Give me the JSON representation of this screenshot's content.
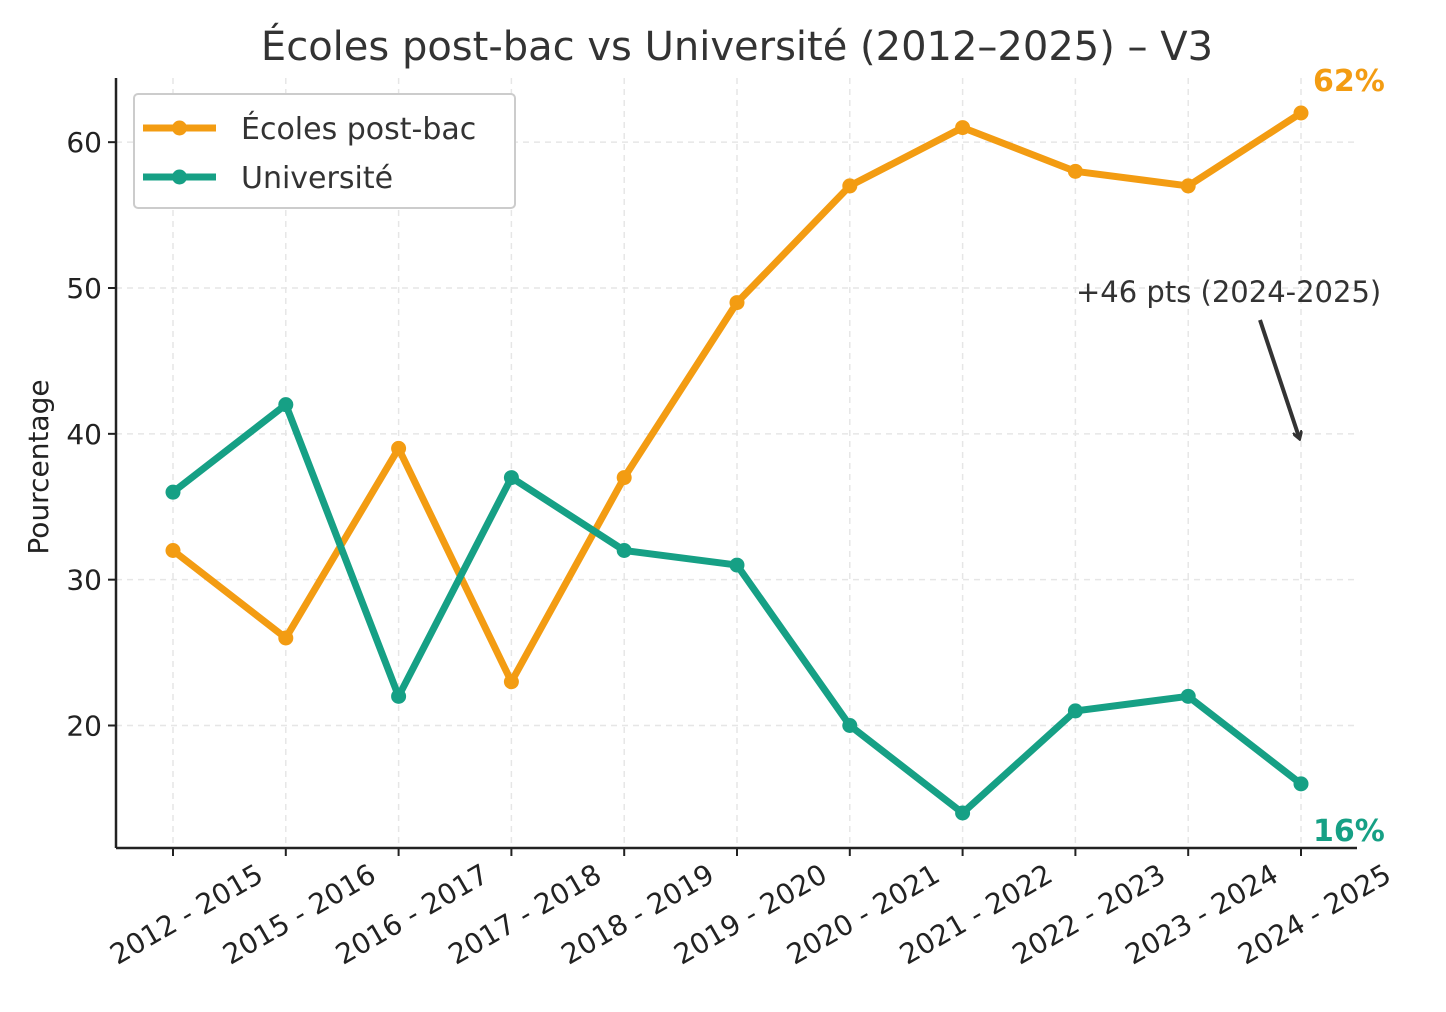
{
  "chart_data": {
    "type": "line",
    "title": "Écoles post-bac vs Université (2012–2025) – V3",
    "xlabel": "",
    "ylabel": "Pourcentage",
    "categories": [
      "2012 - 2015",
      "2015 - 2016",
      "2016 - 2017",
      "2017 - 2018",
      "2018 - 2019",
      "2019 - 2020",
      "2020 - 2021",
      "2021 - 2022",
      "2022 - 2023",
      "2023 - 2024",
      "2024 - 2025"
    ],
    "y_ticks": [
      20,
      30,
      40,
      50,
      60
    ],
    "ylim": [
      11.6,
      64.4
    ],
    "grid": true,
    "legend_position": "top-left",
    "series": [
      {
        "name": "Écoles post-bac",
        "color": "#f39c12",
        "values": [
          32,
          26,
          39,
          23,
          37,
          49,
          57,
          61,
          58,
          57,
          62
        ],
        "end_label": "62%"
      },
      {
        "name": "Université",
        "color": "#16a085",
        "values": [
          36,
          42,
          22,
          37,
          32,
          31,
          20,
          14,
          21,
          22,
          16
        ],
        "end_label": "16%"
      }
    ],
    "annotations": [
      {
        "text": "+46 pts (2024-2025)",
        "target_category": "2024 - 2025",
        "target_value": 39.5
      }
    ]
  }
}
